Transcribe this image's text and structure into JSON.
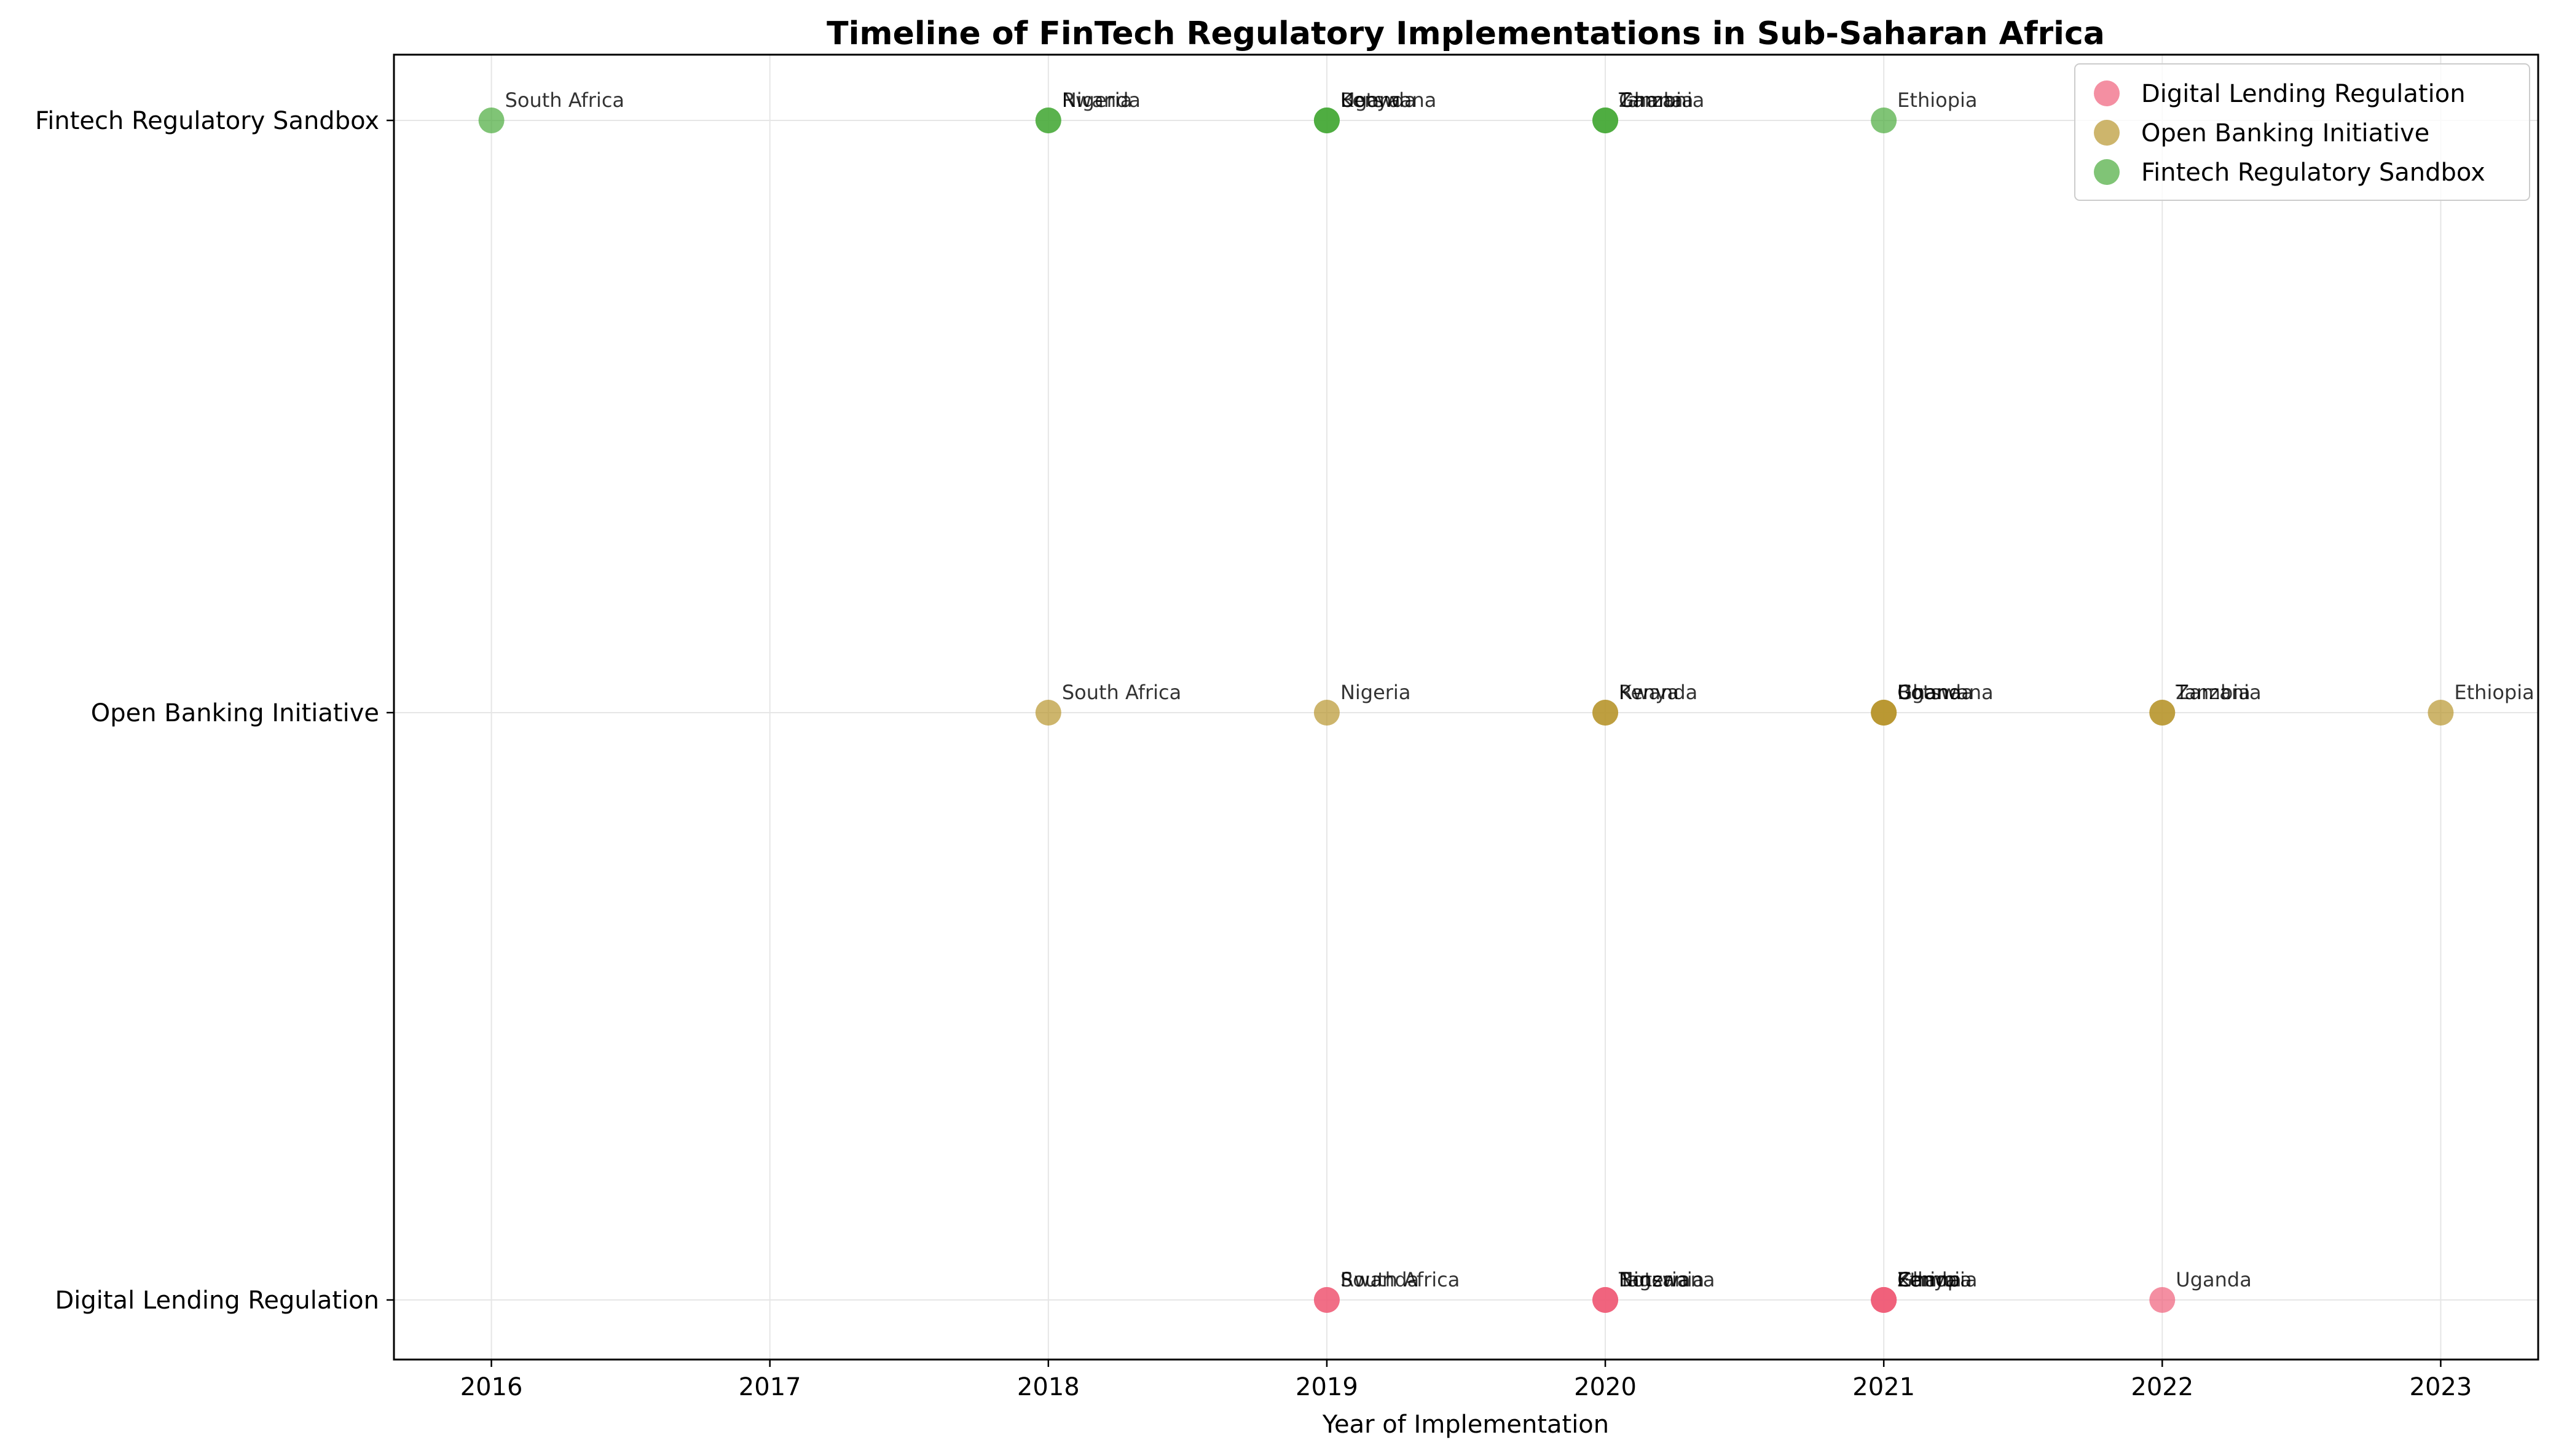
{
  "chart_data": {
    "type": "scatter",
    "title": "Timeline of FinTech Regulatory Implementations in Sub-Saharan Africa",
    "xlabel": "Year of Implementation",
    "ylabel": "",
    "xlim": [
      2015.65,
      2023.35
    ],
    "x_ticks": [
      2016,
      2017,
      2018,
      2019,
      2020,
      2021,
      2022,
      2023
    ],
    "y_categories": [
      "Digital Lending Regulation",
      "Open Banking Initiative",
      "Fintech Regulatory Sandbox"
    ],
    "grid": true,
    "legend_position": "top-right",
    "series": [
      {
        "name": "Digital Lending Regulation",
        "color": "#f0607a",
        "points": [
          {
            "year": 2019,
            "country": "Rwanda"
          },
          {
            "year": 2019,
            "country": "South Africa"
          },
          {
            "year": 2020,
            "country": "Tanzania"
          },
          {
            "year": 2020,
            "country": "Botswana"
          },
          {
            "year": 2020,
            "country": "Nigeria"
          },
          {
            "year": 2021,
            "country": "Zambia"
          },
          {
            "year": 2021,
            "country": "Ethiopia"
          },
          {
            "year": 2021,
            "country": "Ghana"
          },
          {
            "year": 2021,
            "country": "Kenya"
          },
          {
            "year": 2022,
            "country": "Uganda"
          }
        ]
      },
      {
        "name": "Open Banking Initiative",
        "color": "#b8962e",
        "points": [
          {
            "year": 2018,
            "country": "South Africa"
          },
          {
            "year": 2019,
            "country": "Nigeria"
          },
          {
            "year": 2020,
            "country": "Rwanda"
          },
          {
            "year": 2020,
            "country": "Kenya"
          },
          {
            "year": 2021,
            "country": "Uganda"
          },
          {
            "year": 2021,
            "country": "Ghana"
          },
          {
            "year": 2021,
            "country": "Botswana"
          },
          {
            "year": 2022,
            "country": "Tanzania"
          },
          {
            "year": 2022,
            "country": "Zambia"
          },
          {
            "year": 2023,
            "country": "Ethiopia"
          }
        ]
      },
      {
        "name": "Fintech Regulatory Sandbox",
        "color": "#4aab3c",
        "points": [
          {
            "year": 2016,
            "country": "South Africa"
          },
          {
            "year": 2018,
            "country": "Rwanda"
          },
          {
            "year": 2018,
            "country": "Nigeria"
          },
          {
            "year": 2019,
            "country": "Kenya"
          },
          {
            "year": 2019,
            "country": "Botswana"
          },
          {
            "year": 2019,
            "country": "Uganda"
          },
          {
            "year": 2020,
            "country": "Tanzania"
          },
          {
            "year": 2020,
            "country": "Zambia"
          },
          {
            "year": 2020,
            "country": "Ghana"
          },
          {
            "year": 2021,
            "country": "Ethiopia"
          }
        ]
      }
    ]
  }
}
